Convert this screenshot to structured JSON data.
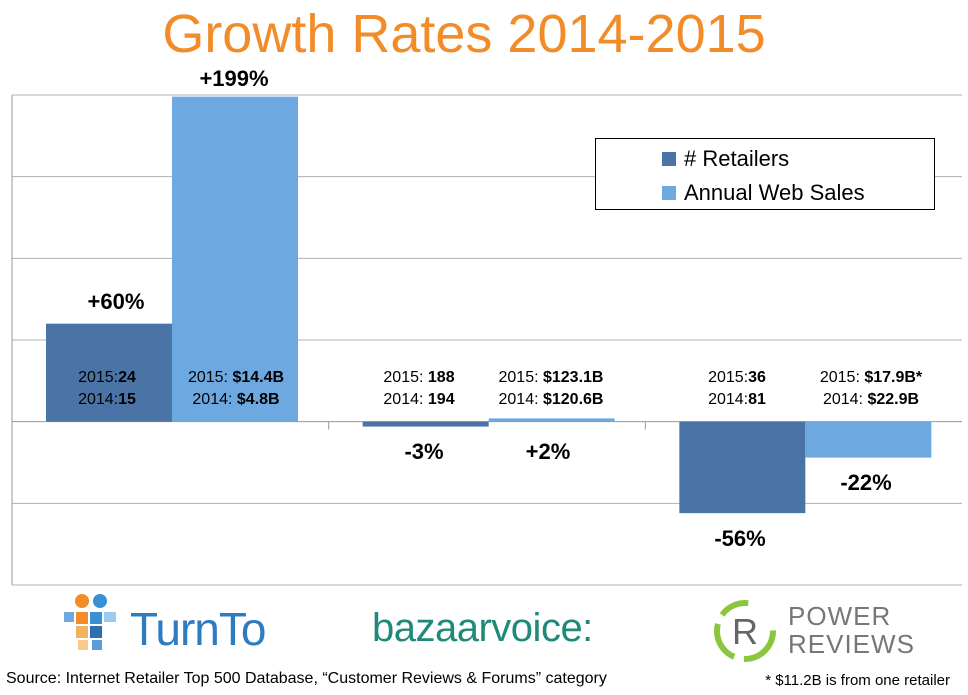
{
  "title": "Growth Rates 2014-2015",
  "legend": [
    {
      "label": "# Retailers",
      "color": "#4a73a6"
    },
    {
      "label": "Annual Web Sales",
      "color": "#6ea8e0"
    }
  ],
  "chart_data": {
    "type": "bar",
    "categories": [
      "TurnTo",
      "bazaarvoice",
      "Power Reviews"
    ],
    "series": [
      {
        "name": "# Retailers",
        "values": [
          60,
          -3,
          -56
        ],
        "color": "#4a73a6"
      },
      {
        "name": "Annual Web Sales",
        "values": [
          199,
          2,
          -22
        ],
        "color": "#6ea8e0"
      }
    ],
    "ylim": [
      -100,
      200
    ],
    "gridlines": [
      200,
      150,
      100,
      50,
      0,
      -50,
      -100
    ],
    "grid": true,
    "legend_position": "top-right"
  },
  "labels": {
    "pct": [
      "+60%",
      "+199%",
      "-3%",
      "+2%",
      "-56%",
      "-22%"
    ],
    "values": [
      {
        "l1_pre": "2015:",
        "l1_b": "24",
        "l2_pre": "2014:",
        "l2_b": "15"
      },
      {
        "l1_pre": "2015: ",
        "l1_b": "$14.4B",
        "l2_pre": "2014: ",
        "l2_b": "$4.8B"
      },
      {
        "l1_pre": "2015: ",
        "l1_b": "188",
        "l2_pre": "2014: ",
        "l2_b": "194"
      },
      {
        "l1_pre": "2015: ",
        "l1_b": "$123.1B",
        "l2_pre": "2014: ",
        "l2_b": "$120.6B"
      },
      {
        "l1_pre": "2015:",
        "l1_b": "36",
        "l2_pre": "2014:",
        "l2_b": "81"
      },
      {
        "l1_pre": "2015: ",
        "l1_b": "$17.9B*",
        "l2_pre": "2014: ",
        "l2_b": "$22.9B"
      }
    ]
  },
  "logos": {
    "turnto": "TurnTo",
    "bazaarvoice": "bazaarvoice:",
    "powerreviews_line1": "POWER",
    "powerreviews_line2": "REVIEWS"
  },
  "source": "Source: Internet Retailer Top 500 Database, “Customer Reviews & Forums” category",
  "footnote": "* $11.2B is from one retailer"
}
